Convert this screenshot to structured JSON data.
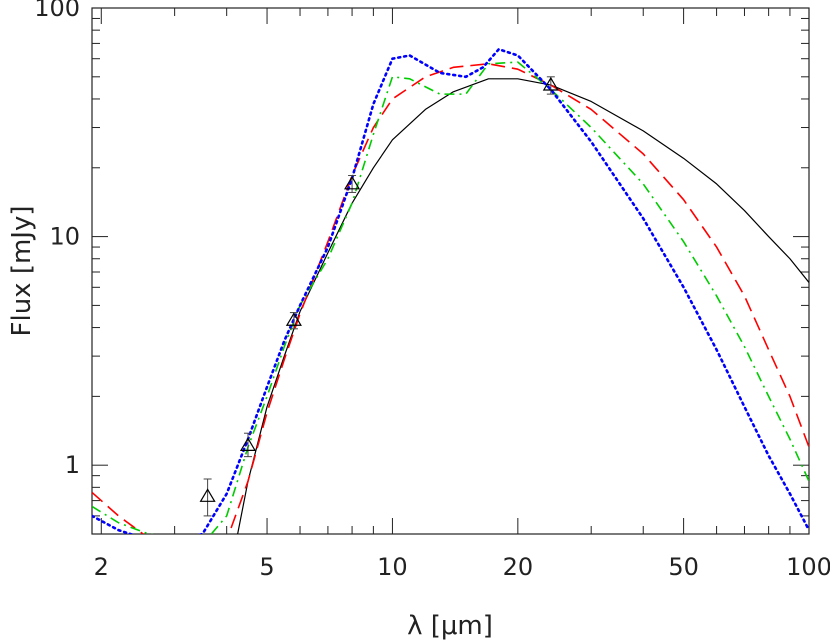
{
  "chart_data": {
    "type": "line",
    "title": "",
    "xlabel": "λ [μm]",
    "ylabel": "Flux [mJy]",
    "xscale": "log",
    "yscale": "log",
    "xlim": [
      1.9,
      100
    ],
    "ylim": [
      0.5,
      100
    ],
    "x_tick_labels": [
      {
        "value": 2,
        "label": "2"
      },
      {
        "value": 5,
        "label": "5"
      },
      {
        "value": 10,
        "label": "10"
      },
      {
        "value": 20,
        "label": "20"
      },
      {
        "value": 50,
        "label": "50"
      },
      {
        "value": 100,
        "label": "100"
      }
    ],
    "y_tick_labels": [
      {
        "value": 1,
        "label": "1"
      },
      {
        "value": 10,
        "label": "10"
      },
      {
        "value": 100,
        "label": "100"
      }
    ],
    "grid": false,
    "legend": "none",
    "observations": {
      "marker": "open-triangle",
      "color": "#000000",
      "points": [
        {
          "x": 3.6,
          "y": 0.73,
          "yerr_low": 0.6,
          "yerr_high": 0.87
        },
        {
          "x": 4.5,
          "y": 1.22,
          "yerr_low": 1.09,
          "yerr_high": 1.38
        },
        {
          "x": 5.8,
          "y": 4.3,
          "yerr_low": 3.95,
          "yerr_high": 4.65
        },
        {
          "x": 8.0,
          "y": 17.0,
          "yerr_low": 15.6,
          "yerr_high": 18.5
        },
        {
          "x": 24.0,
          "y": 46.0,
          "yerr_low": 42.0,
          "yerr_high": 50.0
        }
      ]
    },
    "series": [
      {
        "style": "solid",
        "color": "#000000",
        "points": [
          [
            4.25,
            0.5
          ],
          [
            4.5,
            0.85
          ],
          [
            5.0,
            1.8
          ],
          [
            5.5,
            3.0
          ],
          [
            6.0,
            4.7
          ],
          [
            7.0,
            8.5
          ],
          [
            8.0,
            14.0
          ],
          [
            9.0,
            20.0
          ],
          [
            10.0,
            26.5
          ],
          [
            12.0,
            36.0
          ],
          [
            14.0,
            43.0
          ],
          [
            17.0,
            49.0
          ],
          [
            20.0,
            49.0
          ],
          [
            24.0,
            46.0
          ],
          [
            30.0,
            39.0
          ],
          [
            40.0,
            29.0
          ],
          [
            50.0,
            22.0
          ],
          [
            60.0,
            17.0
          ],
          [
            70.0,
            13.0
          ],
          [
            80.0,
            10.0
          ],
          [
            90.0,
            8.0
          ],
          [
            100.0,
            6.3
          ]
        ]
      },
      {
        "style": "dashed",
        "color": "#ff0000",
        "points": [
          [
            1.9,
            0.76
          ],
          [
            2.2,
            0.6
          ],
          [
            2.6,
            0.48
          ],
          [
            3.0,
            0.44
          ],
          [
            3.5,
            0.42
          ],
          [
            4.0,
            0.47
          ],
          [
            4.5,
            0.85
          ],
          [
            5.0,
            1.7
          ],
          [
            5.5,
            2.9
          ],
          [
            6.0,
            4.6
          ],
          [
            7.0,
            9.5
          ],
          [
            8.0,
            18.5
          ],
          [
            9.0,
            30.0
          ],
          [
            10.0,
            40.0
          ],
          [
            12.0,
            50.0
          ],
          [
            14.0,
            55.0
          ],
          [
            17.0,
            57.0
          ],
          [
            20.0,
            54.0
          ],
          [
            24.0,
            46.0
          ],
          [
            30.0,
            36.0
          ],
          [
            40.0,
            23.0
          ],
          [
            50.0,
            14.5
          ],
          [
            60.0,
            9.0
          ],
          [
            70.0,
            5.5
          ],
          [
            80.0,
            3.2
          ],
          [
            90.0,
            2.0
          ],
          [
            100.0,
            1.2
          ]
        ]
      },
      {
        "style": "dash-dot",
        "color": "#00cc00",
        "points": [
          [
            1.9,
            0.66
          ],
          [
            2.2,
            0.56
          ],
          [
            2.6,
            0.5
          ],
          [
            3.0,
            0.48
          ],
          [
            3.5,
            0.45
          ],
          [
            4.0,
            0.6
          ],
          [
            4.5,
            1.2
          ],
          [
            5.0,
            2.0
          ],
          [
            5.5,
            3.3
          ],
          [
            6.0,
            5.0
          ],
          [
            7.0,
            8.0
          ],
          [
            8.0,
            14.0
          ],
          [
            9.0,
            28.0
          ],
          [
            10.0,
            50.0
          ],
          [
            11.0,
            49.0
          ],
          [
            13.0,
            42.0
          ],
          [
            15.0,
            42.0
          ],
          [
            17.0,
            57.0
          ],
          [
            20.0,
            58.0
          ],
          [
            24.0,
            44.0
          ],
          [
            30.0,
            30.0
          ],
          [
            40.0,
            17.0
          ],
          [
            50.0,
            9.5
          ],
          [
            60.0,
            5.5
          ],
          [
            70.0,
            3.3
          ],
          [
            80.0,
            2.0
          ],
          [
            90.0,
            1.3
          ],
          [
            100.0,
            0.85
          ]
        ]
      },
      {
        "style": "dotted",
        "color": "#0000ff",
        "points": [
          [
            1.9,
            0.6
          ],
          [
            2.2,
            0.52
          ],
          [
            2.6,
            0.47
          ],
          [
            3.0,
            0.46
          ],
          [
            3.5,
            0.5
          ],
          [
            4.0,
            0.75
          ],
          [
            4.5,
            1.3
          ],
          [
            5.0,
            2.2
          ],
          [
            5.5,
            3.5
          ],
          [
            6.0,
            5.0
          ],
          [
            7.0,
            9.0
          ],
          [
            8.0,
            18.0
          ],
          [
            9.0,
            38.0
          ],
          [
            10.0,
            60.0
          ],
          [
            11.0,
            62.0
          ],
          [
            13.0,
            52.0
          ],
          [
            15.0,
            50.0
          ],
          [
            16.5,
            55.0
          ],
          [
            18.0,
            66.0
          ],
          [
            20.0,
            62.0
          ],
          [
            24.0,
            44.0
          ],
          [
            30.0,
            26.0
          ],
          [
            40.0,
            12.0
          ],
          [
            50.0,
            6.0
          ],
          [
            60.0,
            3.2
          ],
          [
            70.0,
            1.8
          ],
          [
            80.0,
            1.1
          ],
          [
            90.0,
            0.75
          ],
          [
            100.0,
            0.52
          ]
        ]
      }
    ]
  }
}
